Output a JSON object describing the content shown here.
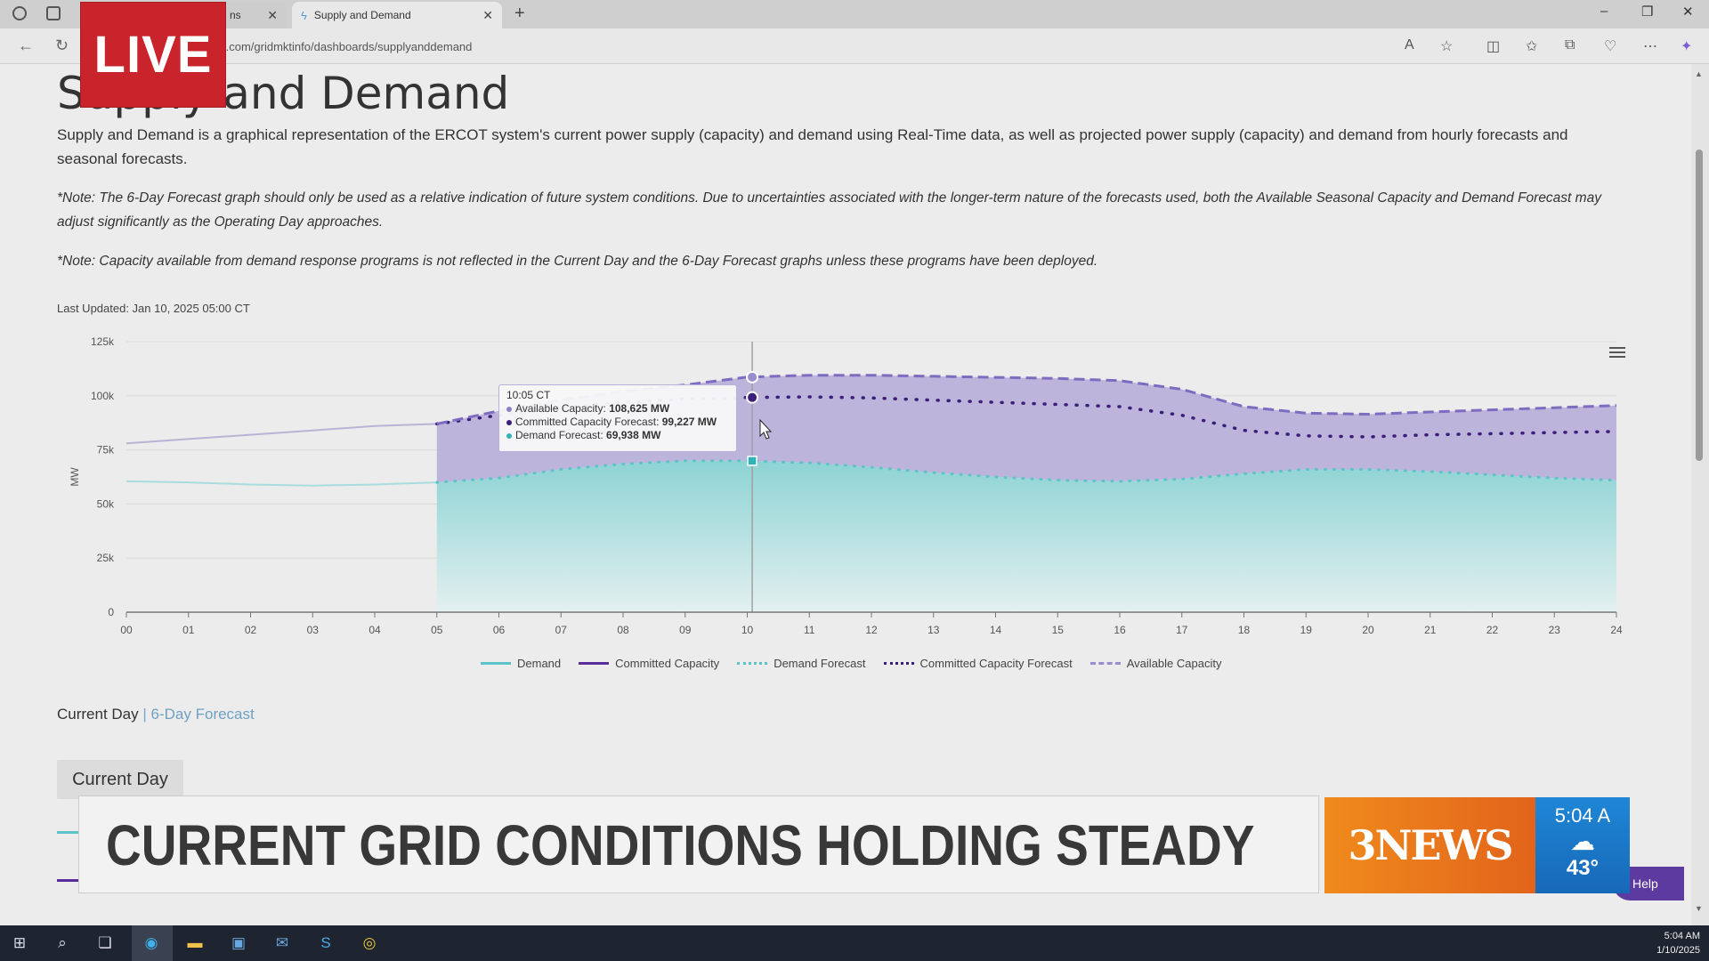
{
  "browser": {
    "tabs": [
      {
        "label": "ns",
        "active": false
      },
      {
        "label": "Supply and Demand",
        "active": true
      }
    ],
    "url": "t.com/gridmktinfo/dashboards/supplyanddemand",
    "window_controls": [
      "–",
      "❐",
      "✕"
    ]
  },
  "overlay": {
    "live_label": "LIVE",
    "headline": "CURRENT GRID CONDITIONS HOLDING STEADY",
    "brand": "3NEWS",
    "weather_time": "5:04 A",
    "weather_temp": "43°"
  },
  "page": {
    "title": "Supply and Demand",
    "description": "Supply and Demand is a graphical representation of the ERCOT system's current power supply (capacity) and demand using Real-Time data, as well as projected power supply (capacity) and demand from hourly forecasts and seasonal forecasts.",
    "note1": "*Note: The 6-Day Forecast graph should only be used as a relative indication of future system conditions. Due to uncertainties associated with the longer-term nature of the forecasts used, both the Available Seasonal Capacity and Demand Forecast may adjust significantly as the Operating Day approaches.",
    "note2": "*Note: Capacity available from demand response programs is not reflected in the Current Day and the 6-Day Forecast graphs unless these programs have been deployed.",
    "last_updated": "Last Updated: Jan 10, 2025 05:00 CT",
    "view_tab_current": "Current Day",
    "view_tab_separator": "|",
    "view_tab_forecast": "6-Day Forecast",
    "section_label": "Current Day",
    "help_label": "Help"
  },
  "tooltip": {
    "time": "10:05 CT",
    "rows": [
      {
        "label": "Available Capacity",
        "value": "108,625 MW",
        "color": "#8f7fc8"
      },
      {
        "label": "Committed Capacity Forecast",
        "value": "99,227 MW",
        "color": "#3b1e7a"
      },
      {
        "label": "Demand Forecast",
        "value": "69,938 MW",
        "color": "#2fb3b8"
      }
    ]
  },
  "taskbar": {
    "time": "5:04 AM",
    "date": "1/10/2025"
  },
  "chart_data": {
    "type": "area",
    "ylabel": "MW",
    "ylim": [
      0,
      125000
    ],
    "y_ticks": [
      "0",
      "25k",
      "50k",
      "75k",
      "100k",
      "125k"
    ],
    "x_ticks": [
      "00",
      "01",
      "02",
      "03",
      "04",
      "05",
      "06",
      "07",
      "08",
      "09",
      "10",
      "11",
      "12",
      "13",
      "14",
      "15",
      "16",
      "17",
      "18",
      "19",
      "20",
      "21",
      "22",
      "23",
      "24"
    ],
    "legend_position": "bottom",
    "colors": {
      "demand": "#5cc3c9",
      "committed": "#5a2d9c",
      "available": "#9a8ccf",
      "available_fill": "#b4aad8",
      "demand_fill": "#8dd3d4"
    },
    "series": [
      {
        "name": "Demand",
        "style": "solid",
        "x": [
          0,
          1,
          2,
          3,
          4,
          5
        ],
        "values": [
          60500,
          60000,
          59000,
          58500,
          59000,
          60000
        ]
      },
      {
        "name": "Committed Capacity",
        "style": "solid",
        "x": [
          0,
          1,
          2,
          3,
          4,
          5
        ],
        "values": [
          78000,
          80000,
          82000,
          84000,
          86000,
          87000
        ]
      },
      {
        "name": "Demand Forecast",
        "style": "dotted",
        "x": [
          5,
          6,
          7,
          8,
          9,
          10,
          11,
          12,
          13,
          14,
          15,
          16,
          17,
          18,
          19,
          20,
          21,
          22,
          23,
          24
        ],
        "values": [
          60000,
          62000,
          66000,
          68500,
          70000,
          69938,
          69000,
          67000,
          64500,
          62500,
          61000,
          60500,
          61500,
          64000,
          66000,
          66000,
          65000,
          63500,
          62000,
          61000
        ]
      },
      {
        "name": "Committed Capacity Forecast",
        "style": "dotted",
        "x": [
          5,
          6,
          7,
          8,
          9,
          10,
          11,
          12,
          13,
          14,
          15,
          16,
          17,
          18,
          19,
          20,
          21,
          22,
          23,
          24
        ],
        "values": [
          87000,
          91000,
          94500,
          97000,
          98500,
          99227,
          99500,
          99000,
          98000,
          97000,
          96000,
          95000,
          91000,
          84000,
          81500,
          81000,
          82000,
          82500,
          83000,
          83500
        ]
      },
      {
        "name": "Available Capacity",
        "style": "dashed",
        "x": [
          5,
          6,
          7,
          8,
          9,
          10,
          11,
          12,
          13,
          14,
          15,
          16,
          17,
          18,
          19,
          20,
          21,
          22,
          23,
          24
        ],
        "values": [
          87000,
          93000,
          98000,
          102000,
          105000,
          108625,
          109500,
          109500,
          109000,
          108500,
          108000,
          107000,
          103000,
          95000,
          92000,
          91500,
          92500,
          93500,
          94500,
          95500
        ]
      }
    ],
    "cursor_x": 10.08
  }
}
